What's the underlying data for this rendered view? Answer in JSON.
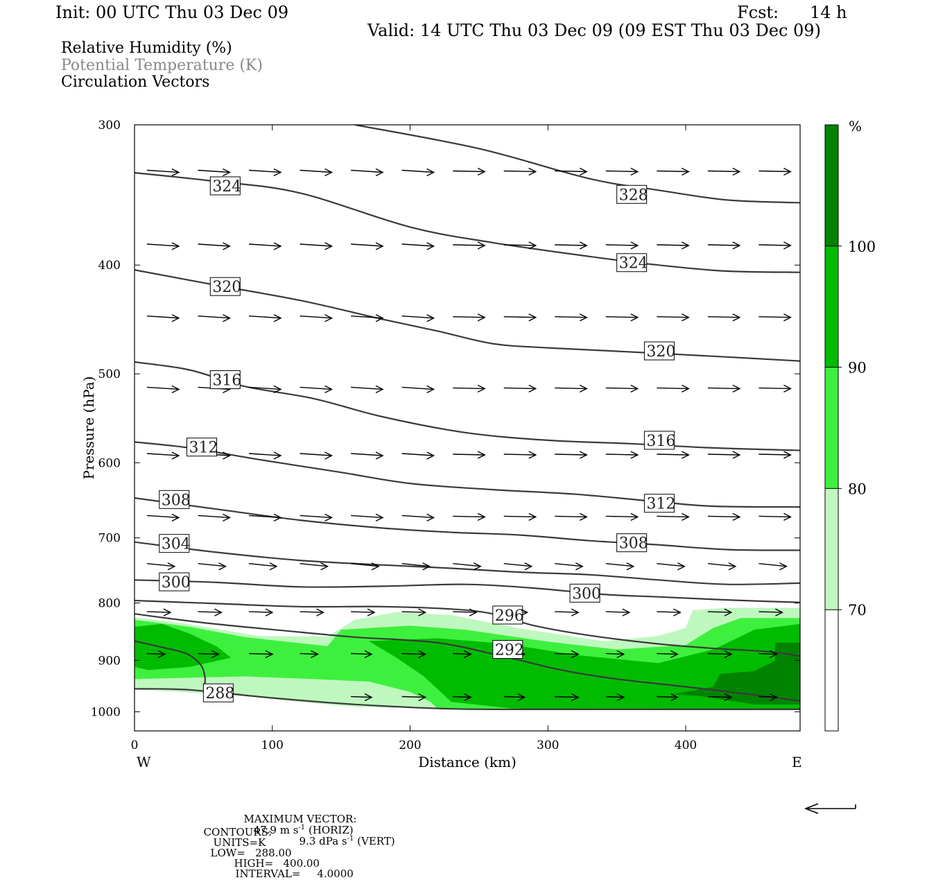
{
  "header": {
    "init": "Init: 00 UTC Thu 03 Dec 09",
    "fcst_label": "Fcst:",
    "fcst_value": "14 h",
    "valid": "Valid: 14 UTC Thu 03 Dec 09 (09 EST Thu 03 Dec 09)"
  },
  "fields": [
    {
      "label": "Relative Humidity (%)",
      "color": "#000000"
    },
    {
      "label": "Potential Temperature (K)",
      "color": "#888888"
    },
    {
      "label": "Circulation Vectors",
      "color": "#000000"
    }
  ],
  "chart_data": {
    "type": "heatmap",
    "xlabel": "Distance (km)",
    "ylabel": "Pressure (hPa)",
    "x_range": [
      0,
      483
    ],
    "y_range": [
      1040,
      300
    ],
    "y_log": true,
    "x_ticks": [
      0,
      100,
      200,
      300,
      400
    ],
    "y_ticks": [
      300,
      400,
      500,
      600,
      700,
      800,
      900,
      1000
    ],
    "x_end_labels": {
      "left": "W",
      "right": "E"
    },
    "colorbar": {
      "unit": "%",
      "levels": [
        70,
        80,
        90,
        100
      ],
      "colors": [
        "#ffffff",
        "#bff8bf",
        "#3ef03e",
        "#00bb00",
        "#008300"
      ]
    },
    "rh_regions": [
      {
        "level": 70,
        "color": "#bff8bf",
        "points": [
          [
            0,
            824
          ],
          [
            35,
            834
          ],
          [
            90,
            856
          ],
          [
            140,
            857
          ],
          [
            160,
            828
          ],
          [
            190,
            815
          ],
          [
            230,
            820
          ],
          [
            280,
            843
          ],
          [
            340,
            865
          ],
          [
            380,
            856
          ],
          [
            400,
            842
          ],
          [
            405,
            812
          ],
          [
            430,
            808
          ],
          [
            483,
            808
          ],
          [
            483,
            995
          ],
          [
            400,
            995
          ],
          [
            320,
            995
          ],
          [
            240,
            993
          ],
          [
            200,
            992
          ],
          [
            160,
            990
          ],
          [
            120,
            980
          ],
          [
            80,
            968
          ],
          [
            0,
            955
          ]
        ]
      },
      {
        "level": 80,
        "color": "#3ef03e",
        "points": [
          [
            0,
            828
          ],
          [
            40,
            840
          ],
          [
            80,
            858
          ],
          [
            140,
            874
          ],
          [
            150,
            845
          ],
          [
            200,
            838
          ],
          [
            240,
            845
          ],
          [
            300,
            866
          ],
          [
            350,
            880
          ],
          [
            400,
            872
          ],
          [
            420,
            842
          ],
          [
            440,
            825
          ],
          [
            483,
            825
          ],
          [
            483,
            995
          ],
          [
            380,
            995
          ],
          [
            290,
            995
          ],
          [
            220,
            994
          ],
          [
            215,
            980
          ],
          [
            200,
            960
          ],
          [
            170,
            940
          ],
          [
            130,
            935
          ],
          [
            80,
            930
          ],
          [
            0,
            935
          ]
        ]
      },
      {
        "level": 90,
        "color": "#00bb00",
        "points": [
          [
            0,
            840
          ],
          [
            20,
            835
          ],
          [
            40,
            852
          ],
          [
            60,
            875
          ],
          [
            70,
            895
          ],
          [
            40,
            912
          ],
          [
            10,
            918
          ],
          [
            0,
            912
          ],
          [
            0,
            840
          ]
        ]
      },
      {
        "level": 90,
        "color": "#00bb00",
        "points": [
          [
            170,
            865
          ],
          [
            220,
            860
          ],
          [
            270,
            870
          ],
          [
            320,
            890
          ],
          [
            380,
            905
          ],
          [
            420,
            880
          ],
          [
            450,
            845
          ],
          [
            483,
            835
          ],
          [
            483,
            995
          ],
          [
            380,
            995
          ],
          [
            280,
            995
          ],
          [
            230,
            980
          ],
          [
            210,
            930
          ],
          [
            190,
            895
          ]
        ]
      },
      {
        "level": 100,
        "color": "#008300",
        "points": [
          [
            390,
            965
          ],
          [
            420,
            950
          ],
          [
            425,
            925
          ],
          [
            450,
            920
          ],
          [
            465,
            900
          ],
          [
            465,
            868
          ],
          [
            483,
            868
          ],
          [
            483,
            985
          ],
          [
            450,
            985
          ],
          [
            410,
            968
          ]
        ]
      }
    ],
    "theta_contours": [
      {
        "value": 328,
        "points": [
          [
            160,
            300
          ],
          [
            250,
            315
          ],
          [
            330,
            335
          ],
          [
            380,
            343
          ],
          [
            430,
            350
          ],
          [
            483,
            352
          ]
        ],
        "label_at": [
          350,
          346
        ]
      },
      {
        "value": 324,
        "points": [
          [
            0,
            331
          ],
          [
            60,
            337
          ],
          [
            120,
            345
          ],
          [
            200,
            370
          ],
          [
            260,
            382
          ],
          [
            330,
            393
          ],
          [
            380,
            400
          ],
          [
            430,
            405
          ],
          [
            483,
            406
          ]
        ],
        "labels_at": [
          [
            55,
            340
          ],
          [
            350,
            398
          ]
        ]
      },
      {
        "value": 320,
        "points": [
          [
            0,
            404
          ],
          [
            60,
            417
          ],
          [
            120,
            430
          ],
          [
            180,
            447
          ],
          [
            220,
            458
          ],
          [
            260,
            470
          ],
          [
            300,
            474
          ],
          [
            360,
            478
          ],
          [
            430,
            483
          ],
          [
            483,
            487
          ]
        ],
        "labels_at": [
          [
            55,
            418
          ],
          [
            370,
            477
          ]
        ]
      },
      {
        "value": 316,
        "points": [
          [
            0,
            488
          ],
          [
            40,
            496
          ],
          [
            80,
            513
          ],
          [
            130,
            526
          ],
          [
            180,
            546
          ],
          [
            240,
            564
          ],
          [
            300,
            573
          ],
          [
            360,
            577
          ],
          [
            420,
            582
          ],
          [
            483,
            585
          ]
        ],
        "labels_at": [
          [
            55,
            506
          ],
          [
            370,
            573
          ]
        ]
      },
      {
        "value": 312,
        "points": [
          [
            0,
            575
          ],
          [
            40,
            582
          ],
          [
            90,
            596
          ],
          [
            150,
            612
          ],
          [
            200,
            626
          ],
          [
            260,
            634
          ],
          [
            320,
            640
          ],
          [
            380,
            650
          ],
          [
            420,
            656
          ],
          [
            483,
            657
          ]
        ],
        "labels_at": [
          [
            38,
            581
          ],
          [
            370,
            652
          ]
        ]
      },
      {
        "value": 308,
        "points": [
          [
            0,
            645
          ],
          [
            60,
            660
          ],
          [
            120,
            675
          ],
          [
            180,
            686
          ],
          [
            230,
            692
          ],
          [
            280,
            696
          ],
          [
            330,
            704
          ],
          [
            380,
            710
          ],
          [
            430,
            717
          ],
          [
            483,
            718
          ]
        ],
        "labels_at": [
          [
            18,
            647
          ],
          [
            350,
            707
          ]
        ]
      },
      {
        "value": 304,
        "points": [
          [
            0,
            706
          ],
          [
            60,
            721
          ],
          [
            120,
            733
          ],
          [
            180,
            740
          ],
          [
            230,
            745
          ],
          [
            280,
            751
          ],
          [
            330,
            755
          ],
          [
            380,
            763
          ],
          [
            430,
            770
          ],
          [
            483,
            768
          ]
        ],
        "labels_at": [
          [
            18,
            708
          ]
        ]
      },
      {
        "value": 300,
        "points": [
          [
            0,
            763
          ],
          [
            60,
            767
          ],
          [
            120,
            774
          ],
          [
            180,
            773
          ],
          [
            240,
            770
          ],
          [
            290,
            776
          ],
          [
            340,
            786
          ],
          [
            380,
            790
          ],
          [
            430,
            795
          ],
          [
            483,
            799
          ]
        ],
        "labels_at": [
          [
            18,
            766
          ],
          [
            316,
            784
          ]
        ]
      },
      {
        "value": 296,
        "points": [
          [
            0,
            796
          ],
          [
            60,
            801
          ],
          [
            120,
            806
          ],
          [
            180,
            806
          ],
          [
            230,
            810
          ],
          [
            260,
            818
          ],
          [
            290,
            838
          ],
          [
            330,
            855
          ],
          [
            380,
            870
          ],
          [
            420,
            878
          ],
          [
            460,
            884
          ],
          [
            483,
            892
          ]
        ],
        "labels_at": [
          [
            260,
            820
          ]
        ]
      },
      {
        "value": 292,
        "points": [
          [
            0,
            818
          ],
          [
            50,
            833
          ],
          [
            110,
            847
          ],
          [
            160,
            858
          ],
          [
            220,
            868
          ],
          [
            270,
            894
          ],
          [
            310,
            918
          ],
          [
            350,
            935
          ],
          [
            400,
            950
          ],
          [
            450,
            966
          ],
          [
            483,
            978
          ]
        ],
        "labels_at": [
          [
            260,
            880
          ]
        ]
      },
      {
        "value": 288,
        "points": [
          [
            0,
            954
          ],
          [
            40,
            956
          ],
          [
            100,
            972
          ],
          [
            160,
            985
          ],
          [
            230,
            994
          ],
          [
            300,
            995
          ],
          [
            400,
            995
          ],
          [
            483,
            995
          ]
        ],
        "labels_at": [
          [
            50,
            962
          ]
        ]
      }
    ],
    "theta_292_cold_branch": [
      [
        0,
        865
      ],
      [
        20,
        876
      ],
      [
        38,
        888
      ],
      [
        48,
        908
      ],
      [
        51,
        930
      ],
      [
        51,
        945
      ]
    ],
    "vector_rows": [
      330,
      384,
      445,
      515,
      590,
      670,
      740,
      815,
      888,
      970
    ],
    "max_vector": {
      "label": "MAXIMUM VECTOR:",
      "horiz": "47.9 m s",
      "horiz_exp": "-1",
      "horiz_tag": "(HORIZ)",
      "vert": "9.3 dPa s",
      "vert_exp": "-1",
      "vert_tag": "(VERT)"
    },
    "contours_info": {
      "label": "CONTOURS:",
      "units": "UNITS=K",
      "low": "LOW=   288.00",
      "high": "HIGH=   400.00",
      "interval": "INTERVAL=     4.0000"
    }
  }
}
